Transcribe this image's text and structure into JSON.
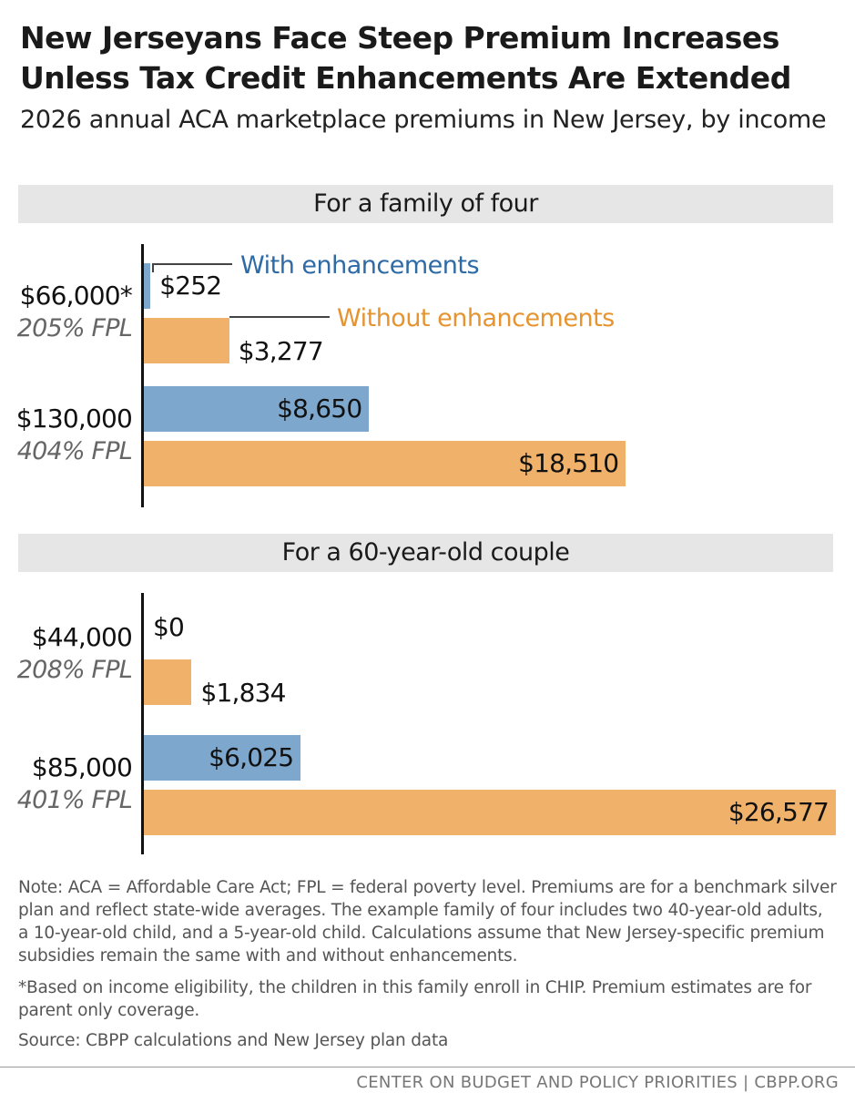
{
  "header": {
    "title": "New Jerseyans Face Steep Premium Increases Unless Tax Credit Enhancements Are Extended",
    "subtitle": "2026 annual ACA marketplace premiums in New Jersey, by income"
  },
  "colors": {
    "with": "#7da7cd",
    "without": "#f0b26b",
    "with_text": "#2e6aa6",
    "without_text": "#e59430"
  },
  "legend": {
    "with": "With enhancements",
    "without": "Without enhancements"
  },
  "chart_data": [
    {
      "type": "bar",
      "orientation": "horizontal",
      "title": "For a family of four",
      "categories": [
        {
          "income": "$66,000*",
          "fpl": "205% FPL"
        },
        {
          "income": "$130,000",
          "fpl": "404% FPL"
        }
      ],
      "series": [
        {
          "name": "With enhancements",
          "values": [
            252,
            8650
          ],
          "labels": [
            "$252",
            "$8,650"
          ]
        },
        {
          "name": "Without enhancements",
          "values": [
            3277,
            18510
          ],
          "labels": [
            "$3,277",
            "$18,510"
          ]
        }
      ]
    },
    {
      "type": "bar",
      "orientation": "horizontal",
      "title": "For a 60-year-old couple",
      "categories": [
        {
          "income": "$44,000",
          "fpl": "208% FPL"
        },
        {
          "income": "$85,000",
          "fpl": "401% FPL"
        }
      ],
      "series": [
        {
          "name": "With enhancements",
          "values": [
            0,
            6025
          ],
          "labels": [
            "$0",
            "$6,025"
          ]
        },
        {
          "name": "Without enhancements",
          "values": [
            1834,
            26577
          ],
          "labels": [
            "$1,834",
            "$26,577"
          ]
        }
      ]
    }
  ],
  "notes": {
    "note": "Note: ACA = Affordable Care Act; FPL = federal poverty level. Premiums are for a benchmark silver plan and reflect state-wide averages. The example family of four includes two 40-year-old adults, a 10-year-old child, and a 5-year-old child. Calculations assume that New Jersey-specific premium subsidies remain the same with and without enhancements.",
    "footnote": "*Based on income eligibility, the children in this family enroll in CHIP. Premium estimates are for parent only coverage.",
    "source": "Source: CBPP calculations and New Jersey plan data"
  },
  "footer": "CENTER ON BUDGET AND POLICY PRIORITIES | CBPP.ORG"
}
